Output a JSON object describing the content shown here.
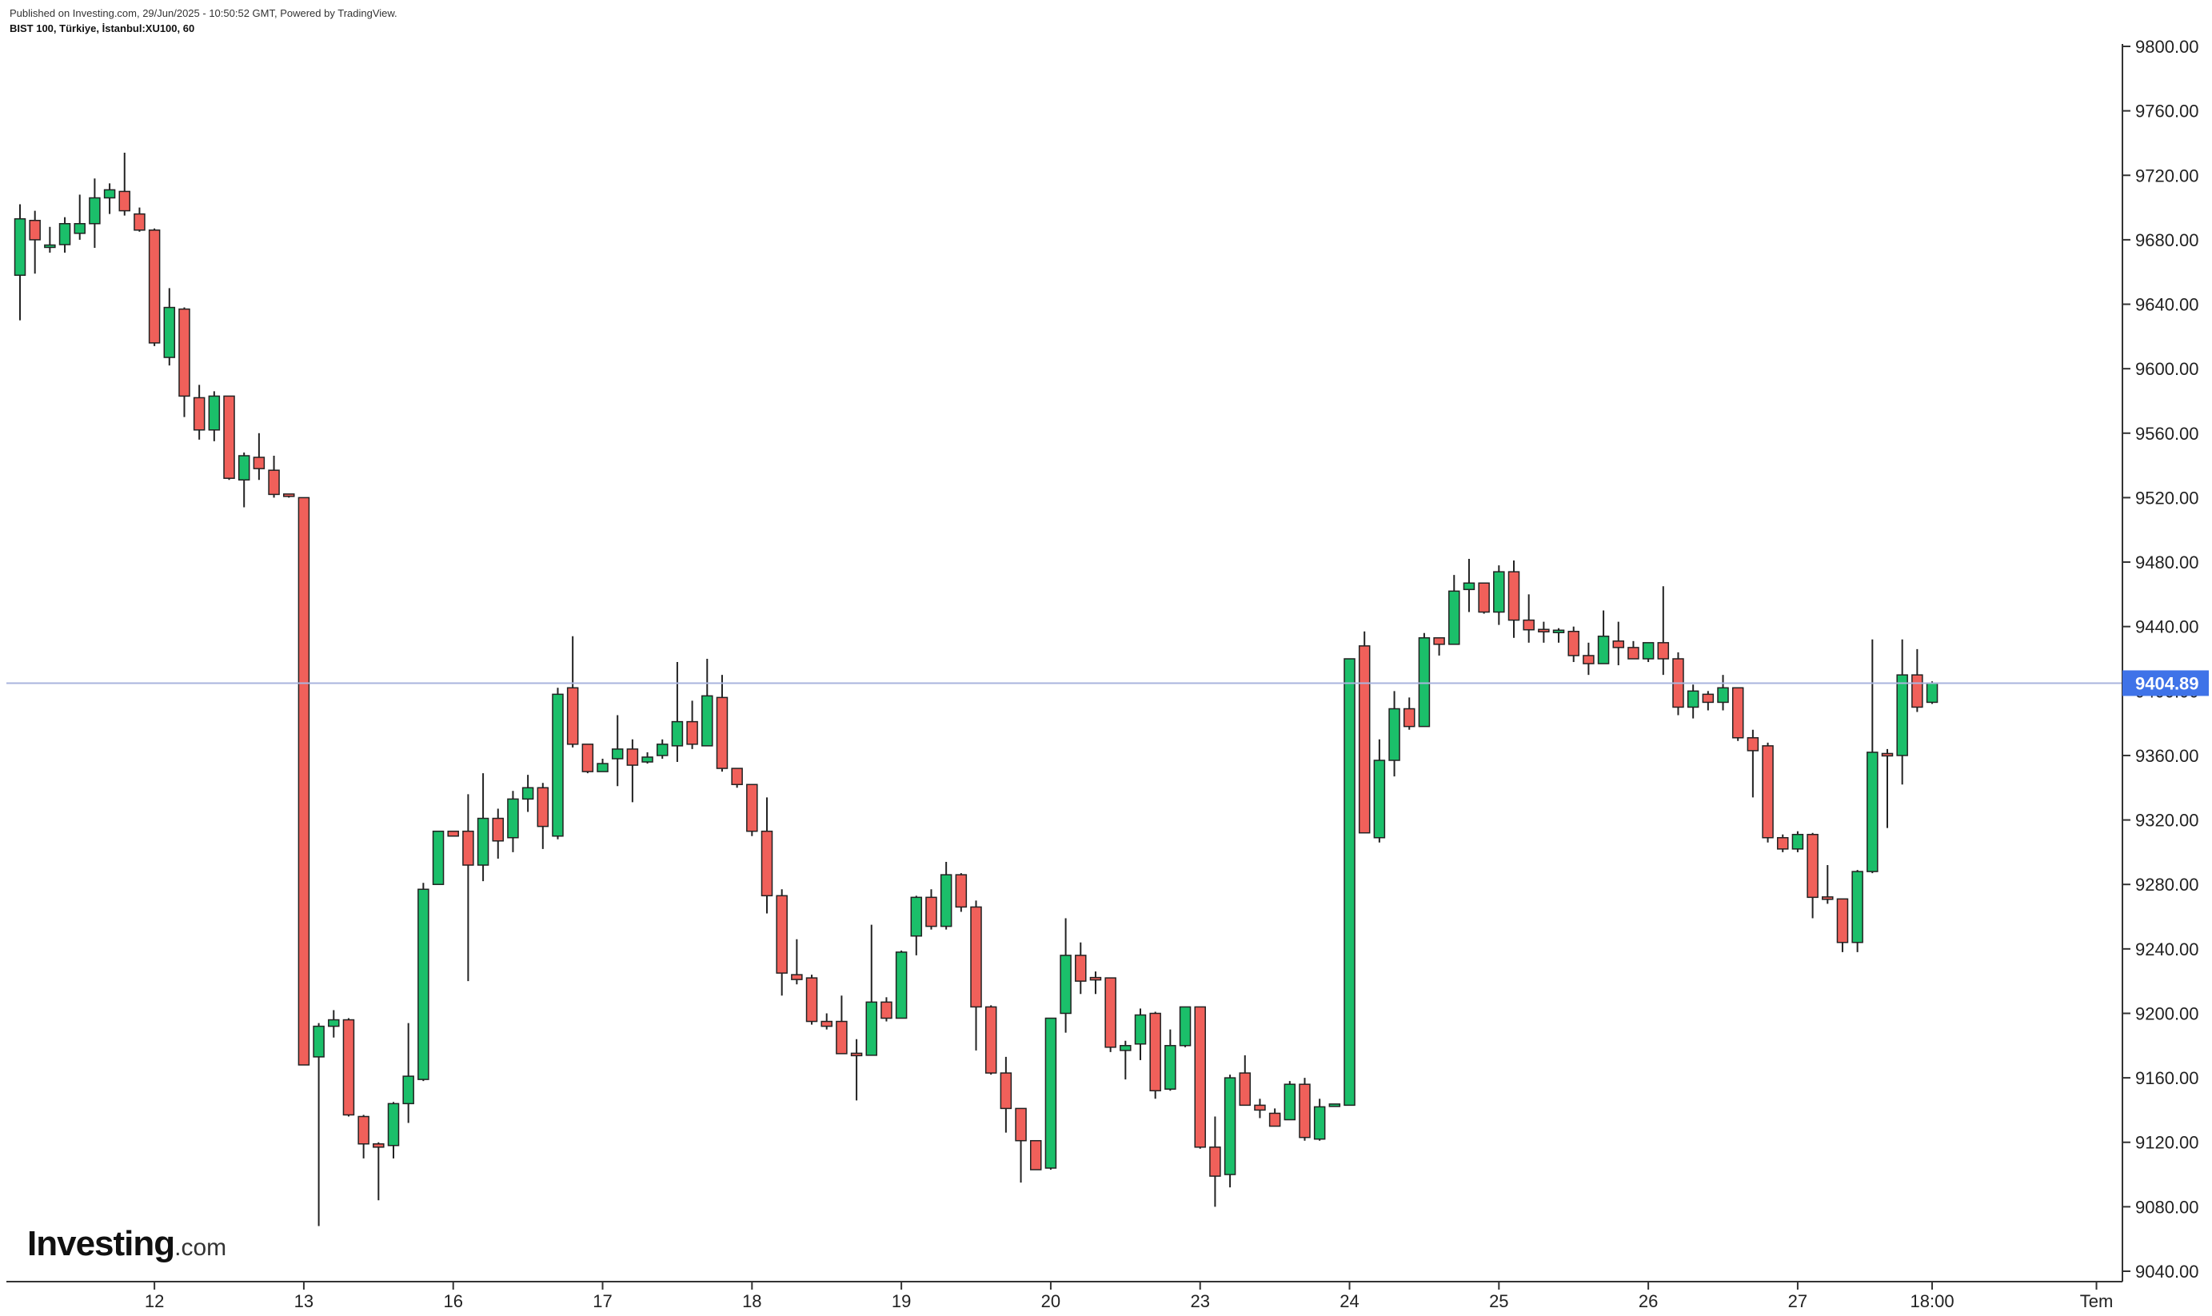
{
  "header": {
    "published": "Published on Investing.com, 29/Jun/2025 - 10:50:52 GMT, Powered by TradingView.",
    "symbol": "BIST 100, Türkiye, İstanbul:XU100, 60"
  },
  "logo": {
    "main": "Investing",
    "suffix": ".com"
  },
  "colors": {
    "up": "#1bbf6a",
    "down": "#f0605a",
    "wick": "#222222",
    "price_line": "#aab4de",
    "price_tag": "#3f73e8"
  },
  "chart_data": {
    "type": "candlestick",
    "title": "BIST 100, Türkiye, İstanbul:XU100, 60",
    "ylim": [
      9020,
      9815
    ],
    "y_ticks": [
      9040,
      9080,
      9120,
      9160,
      9200,
      9240,
      9280,
      9320,
      9360,
      9400,
      9440,
      9480,
      9520,
      9560,
      9600,
      9640,
      9680,
      9720,
      9760,
      9800
    ],
    "y_tick_labels": [
      "9040.00",
      "9080.00",
      "9120.00",
      "9160.00",
      "9200.00",
      "9240.00",
      "9280.00",
      "9320.00",
      "9360.00",
      "9400.00",
      "9440.00",
      "9480.00",
      "9520.00",
      "9560.00",
      "9600.00",
      "9640.00",
      "9680.00",
      "9720.00",
      "9760.00",
      "9800.00"
    ],
    "x_ticks": [
      {
        "label": "12",
        "index": 9
      },
      {
        "label": "13",
        "index": 19
      },
      {
        "label": "16",
        "index": 29
      },
      {
        "label": "17",
        "index": 39
      },
      {
        "label": "18",
        "index": 49
      },
      {
        "label": "19",
        "index": 59
      },
      {
        "label": "20",
        "index": 69
      },
      {
        "label": "23",
        "index": 79
      },
      {
        "label": "24",
        "index": 89
      },
      {
        "label": "25",
        "index": 99
      },
      {
        "label": "26",
        "index": 109
      },
      {
        "label": "27",
        "index": 119
      },
      {
        "label": "18:00",
        "index": 128
      },
      {
        "label": "Tem",
        "index": 139
      }
    ],
    "last_price": 9404.89,
    "last_price_label": "9404.89",
    "candles": [
      [
        9658,
        9693,
        9630,
        9702
      ],
      [
        9692,
        9680,
        9659,
        9698
      ],
      [
        9676,
        9676,
        9672,
        9688
      ],
      [
        9677,
        9690,
        9672,
        9694
      ],
      [
        9684,
        9690,
        9680,
        9708
      ],
      [
        9690,
        9706,
        9675,
        9718
      ],
      [
        9706,
        9711,
        9696,
        9715
      ],
      [
        9710,
        9698,
        9695,
        9734
      ],
      [
        9696,
        9686,
        9685,
        9700
      ],
      [
        9686,
        9616,
        9614,
        9687
      ],
      [
        9607,
        9638,
        9602,
        9650
      ],
      [
        9637,
        9583,
        9570,
        9638
      ],
      [
        9582,
        9562,
        9556,
        9590
      ],
      [
        9562,
        9583,
        9555,
        9586
      ],
      [
        9583,
        9532,
        9531,
        9583
      ],
      [
        9531,
        9546,
        9514,
        9548
      ],
      [
        9545,
        9538,
        9531,
        9560
      ],
      [
        9537,
        9522,
        9520,
        9546
      ],
      [
        9522,
        9521,
        9520,
        9522
      ],
      [
        9520,
        9168,
        9168,
        9520
      ],
      [
        9173,
        9192,
        9068,
        9194
      ],
      [
        9192,
        9196,
        9185,
        9202
      ],
      [
        9196,
        9137,
        9136,
        9197
      ],
      [
        9136,
        9119,
        9110,
        9137
      ],
      [
        9119,
        9117,
        9084,
        9120
      ],
      [
        9118,
        9144,
        9110,
        9145
      ],
      [
        9144,
        9161,
        9132,
        9194
      ],
      [
        9159,
        9277,
        9158,
        9281
      ],
      [
        9280,
        9313,
        9280,
        9313
      ],
      [
        9313,
        9310,
        9310,
        9313
      ],
      [
        9313,
        9292,
        9220,
        9336
      ],
      [
        9292,
        9321,
        9282,
        9349
      ],
      [
        9321,
        9307,
        9296,
        9327
      ],
      [
        9309,
        9333,
        9300,
        9338
      ],
      [
        9333,
        9340,
        9325,
        9348
      ],
      [
        9340,
        9316,
        9302,
        9343
      ],
      [
        9310,
        9398,
        9308,
        9402
      ],
      [
        9402,
        9367,
        9365,
        9434
      ],
      [
        9367,
        9350,
        9349,
        9367
      ],
      [
        9350,
        9355,
        9350,
        9358
      ],
      [
        9358,
        9364,
        9341,
        9385
      ],
      [
        9364,
        9354,
        9331,
        9370
      ],
      [
        9356,
        9359,
        9355,
        9362
      ],
      [
        9360,
        9367,
        9358,
        9370
      ],
      [
        9366,
        9381,
        9356,
        9418
      ],
      [
        9381,
        9367,
        9364,
        9394
      ],
      [
        9366,
        9397,
        9366,
        9420
      ],
      [
        9396,
        9352,
        9350,
        9410
      ],
      [
        9352,
        9342,
        9340,
        9352
      ],
      [
        9342,
        9313,
        9310,
        9342
      ],
      [
        9313,
        9273,
        9262,
        9334
      ],
      [
        9273,
        9225,
        9211,
        9277
      ],
      [
        9224,
        9221,
        9218,
        9246
      ],
      [
        9222,
        9195,
        9193,
        9224
      ],
      [
        9195,
        9192,
        9190,
        9200
      ],
      [
        9195,
        9175,
        9175,
        9211
      ],
      [
        9175,
        9174,
        9146,
        9184
      ],
      [
        9174,
        9207,
        9175,
        9255
      ],
      [
        9207,
        9197,
        9195,
        9210
      ],
      [
        9197,
        9238,
        9197,
        9239
      ],
      [
        9248,
        9272,
        9236,
        9273
      ],
      [
        9272,
        9254,
        9252,
        9277
      ],
      [
        9254,
        9286,
        9252,
        9294
      ],
      [
        9286,
        9266,
        9263,
        9287
      ],
      [
        9266,
        9204,
        9177,
        9270
      ],
      [
        9204,
        9163,
        9162,
        9205
      ],
      [
        9163,
        9141,
        9126,
        9173
      ],
      [
        9141,
        9121,
        9095,
        9141
      ],
      [
        9121,
        9103,
        9103,
        9121
      ],
      [
        9104,
        9197,
        9103,
        9197
      ],
      [
        9200,
        9236,
        9188,
        9259
      ],
      [
        9236,
        9220,
        9212,
        9244
      ],
      [
        9222,
        9221,
        9212,
        9226
      ],
      [
        9222,
        9179,
        9176,
        9222
      ],
      [
        9177,
        9180,
        9159,
        9183
      ],
      [
        9181,
        9199,
        9171,
        9203
      ],
      [
        9200,
        9152,
        9147,
        9201
      ],
      [
        9153,
        9180,
        9152,
        9190
      ],
      [
        9180,
        9204,
        9179,
        9204
      ],
      [
        9204,
        9117,
        9116,
        9204
      ],
      [
        9117,
        9099,
        9080,
        9136
      ],
      [
        9100,
        9160,
        9092,
        9162
      ],
      [
        9163,
        9143,
        9143,
        9174
      ],
      [
        9143,
        9140,
        9135,
        9147
      ],
      [
        9138,
        9130,
        9130,
        9141
      ],
      [
        9134,
        9156,
        9134,
        9158
      ],
      [
        9156,
        9123,
        9121,
        9160
      ],
      [
        9122,
        9142,
        9121,
        9147
      ],
      [
        9143,
        9143,
        9142,
        9143
      ],
      [
        9143,
        9420,
        9143,
        9420
      ],
      [
        9428,
        9312,
        9312,
        9437
      ],
      [
        9309,
        9357,
        9306,
        9370
      ],
      [
        9357,
        9389,
        9347,
        9400
      ],
      [
        9389,
        9378,
        9376,
        9396
      ],
      [
        9378,
        9433,
        9378,
        9436
      ],
      [
        9433,
        9429,
        9422,
        9433
      ],
      [
        9429,
        9462,
        9430,
        9472
      ],
      [
        9463,
        9467,
        9449,
        9482
      ],
      [
        9467,
        9449,
        9448,
        9467
      ],
      [
        9449,
        9474,
        9441,
        9478
      ],
      [
        9474,
        9444,
        9433,
        9481
      ],
      [
        9444,
        9438,
        9430,
        9460
      ],
      [
        9438,
        9437,
        9430,
        9443
      ],
      [
        9437,
        9437,
        9430,
        9439
      ],
      [
        9437,
        9422,
        9418,
        9440
      ],
      [
        9422,
        9417,
        9410,
        9430
      ],
      [
        9417,
        9434,
        9420,
        9450
      ],
      [
        9431,
        9427,
        9416,
        9443
      ],
      [
        9427,
        9420,
        9420,
        9431
      ],
      [
        9420,
        9430,
        9418,
        9430
      ],
      [
        9430,
        9420,
        9410,
        9465
      ],
      [
        9420,
        9390,
        9385,
        9424
      ],
      [
        9390,
        9400,
        9383,
        9404
      ],
      [
        9398,
        9393,
        9388,
        9400
      ],
      [
        9393,
        9402,
        9388,
        9410
      ],
      [
        9402,
        9371,
        9369,
        9402
      ],
      [
        9371,
        9363,
        9334,
        9376
      ],
      [
        9366,
        9309,
        9306,
        9368
      ],
      [
        9309,
        9302,
        9300,
        9311
      ],
      [
        9302,
        9311,
        9300,
        9313
      ],
      [
        9311,
        9272,
        9259,
        9312
      ],
      [
        9272,
        9271,
        9268,
        9292
      ],
      [
        9271,
        9244,
        9238,
        9271
      ],
      [
        9244,
        9288,
        9238,
        9289
      ],
      [
        9288,
        9362,
        9287,
        9432
      ],
      [
        9361,
        9360,
        9315,
        9364
      ],
      [
        9360,
        9410,
        9342,
        9432
      ],
      [
        9410,
        9390,
        9387,
        9426
      ],
      [
        9393,
        9405,
        9392,
        9406
      ]
    ]
  }
}
